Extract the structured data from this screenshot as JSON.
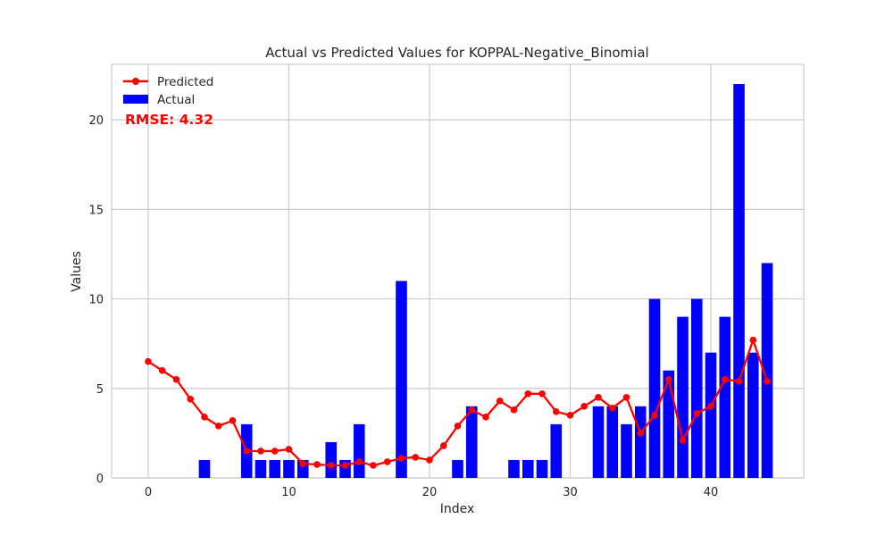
{
  "chart_data": {
    "type": "bar",
    "title": "Actual vs Predicted Values for KOPPAL-Negative_Binomial",
    "xlabel": "Index",
    "ylabel": "Values",
    "xlim": [
      -2.6,
      46.6
    ],
    "ylim": [
      0,
      23.1
    ],
    "xticks": [
      0,
      10,
      20,
      30,
      40
    ],
    "yticks": [
      0,
      5,
      10,
      15,
      20
    ],
    "grid": true,
    "legend_position": "top-left",
    "annotation": "RMSE: 4.32",
    "x": [
      0,
      1,
      2,
      3,
      4,
      5,
      6,
      7,
      8,
      9,
      10,
      11,
      12,
      13,
      14,
      15,
      16,
      17,
      18,
      19,
      20,
      21,
      22,
      23,
      24,
      25,
      26,
      27,
      28,
      29,
      30,
      31,
      32,
      33,
      34,
      35,
      36,
      37,
      38,
      39,
      40,
      41,
      42,
      43,
      44
    ],
    "series": [
      {
        "name": "Actual",
        "kind": "bar",
        "color": "#0000ff",
        "values": [
          0,
          0,
          0,
          0,
          1,
          0,
          0,
          3,
          1,
          1,
          1,
          1,
          0,
          2,
          1,
          3,
          0,
          0,
          11,
          0,
          0,
          0,
          1,
          4,
          0,
          0,
          1,
          1,
          1,
          3,
          0,
          0,
          4,
          4,
          3,
          4,
          10,
          6,
          9,
          10,
          7,
          9,
          22,
          7,
          12
        ]
      },
      {
        "name": "Predicted",
        "kind": "line",
        "color": "#ff0000",
        "values": [
          6.5,
          6.0,
          5.5,
          4.4,
          3.4,
          2.9,
          3.2,
          1.5,
          1.5,
          1.5,
          1.6,
          0.8,
          0.75,
          0.7,
          0.7,
          0.9,
          0.7,
          0.9,
          1.1,
          1.15,
          1.0,
          1.8,
          2.9,
          3.8,
          3.4,
          4.3,
          3.8,
          4.7,
          4.7,
          3.7,
          3.5,
          4.0,
          4.5,
          3.9,
          4.5,
          2.5,
          3.5,
          5.5,
          2.1,
          3.6,
          4.0,
          5.5,
          5.4,
          7.7,
          5.4
        ]
      }
    ]
  }
}
